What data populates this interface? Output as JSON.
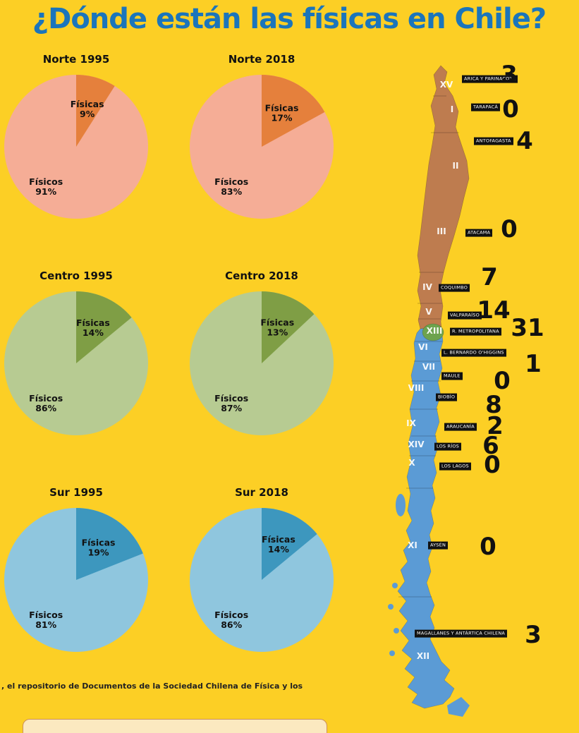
{
  "title": "¿Dónde están las físicas en Chile?",
  "footer_text": ", el repositorio de Documentos de la Sociedad Chilena de Física y los",
  "colors": {
    "background": "#FCCF25",
    "title": "#1B75BB",
    "norte_slice": "#E5803C",
    "norte_base": "#F5AD96",
    "centro_slice": "#7F9E45",
    "centro_base": "#B7CB92",
    "sur_slice": "#3D97BE",
    "sur_base": "#8FC6DE",
    "map_north": "#BE7C4F",
    "map_metro": "#6DA34D",
    "map_south": "#5B9BD5",
    "region_tag_bg": "#111111",
    "region_tag_text": "#FFFFFF",
    "count_text": "#111111"
  },
  "chart_data": [
    {
      "type": "pie",
      "title": "Norte 1995",
      "palette": "norte",
      "slices": [
        {
          "label": "Físicas",
          "pct": 9
        },
        {
          "label": "Físicos",
          "pct": 91
        }
      ]
    },
    {
      "type": "pie",
      "title": "Norte 2018",
      "palette": "norte",
      "slices": [
        {
          "label": "Físicas",
          "pct": 17
        },
        {
          "label": "Físicos",
          "pct": 83
        }
      ]
    },
    {
      "type": "pie",
      "title": "Centro 1995",
      "palette": "centro",
      "slices": [
        {
          "label": "Físicas",
          "pct": 14
        },
        {
          "label": "Físicos",
          "pct": 86
        }
      ]
    },
    {
      "type": "pie",
      "title": "Centro 2018",
      "palette": "centro",
      "slices": [
        {
          "label": "Físicas",
          "pct": 13
        },
        {
          "label": "Físicos",
          "pct": 87
        }
      ]
    },
    {
      "type": "pie",
      "title": "Sur 1995",
      "palette": "sur",
      "slices": [
        {
          "label": "Físicas",
          "pct": 19
        },
        {
          "label": "Físicos",
          "pct": 81
        }
      ]
    },
    {
      "type": "pie",
      "title": "Sur 2018",
      "palette": "sur",
      "slices": [
        {
          "label": "Físicas",
          "pct": 14
        },
        {
          "label": "Físicos",
          "pct": 86
        }
      ]
    }
  ],
  "map": {
    "regions": [
      {
        "numeral": "XV",
        "name": "ARICA Y PARINACOTA",
        "count": "3",
        "tag": [
          125,
          24
        ],
        "num": [
          103,
          32
        ],
        "cnt": [
          192,
          18
        ]
      },
      {
        "numeral": "I",
        "name": "TARAPACÁ",
        "count": "0",
        "tag": [
          138,
          64
        ],
        "num": [
          111,
          67
        ],
        "cnt": [
          194,
          67
        ]
      },
      {
        "numeral": "II",
        "name": "ANTOFAGASTA",
        "count": "4",
        "tag": [
          142,
          112
        ],
        "num": [
          116,
          147
        ],
        "cnt": [
          214,
          112
        ]
      },
      {
        "numeral": "III",
        "name": "ATACAMA",
        "count": "0",
        "tag": [
          130,
          242
        ],
        "num": [
          96,
          240
        ],
        "cnt": [
          192,
          237
        ]
      },
      {
        "numeral": "IV",
        "name": "COQUIMBO",
        "count": "7",
        "tag": [
          92,
          320
        ],
        "num": [
          76,
          319
        ],
        "cnt": [
          164,
          305
        ]
      },
      {
        "numeral": "V",
        "name": "VALPARAÍSO",
        "count": "14",
        "tag": [
          105,
          359
        ],
        "num": [
          78,
          354
        ],
        "cnt": [
          170,
          352
        ]
      },
      {
        "numeral": "XIII",
        "name": "R. METROPOLITANA",
        "count": "31",
        "tag": [
          108,
          382
        ],
        "num": [
          86,
          381
        ],
        "cnt": [
          218,
          377
        ]
      },
      {
        "numeral": "VI",
        "name": "L. BERNARDO O'HIGGINS",
        "count": "1",
        "tag": [
          96,
          412
        ],
        "num": [
          70,
          404
        ],
        "cnt": [
          226,
          428
        ]
      },
      {
        "numeral": "VII",
        "name": "MAULE",
        "count": "0",
        "tag": [
          96,
          445
        ],
        "num": [
          78,
          432
        ],
        "cnt": [
          182,
          452
        ]
      },
      {
        "numeral": "VIII",
        "name": "BIOBÍO",
        "count": "8",
        "tag": [
          88,
          475
        ],
        "num": [
          60,
          462
        ],
        "cnt": [
          170,
          486
        ]
      },
      {
        "numeral": "IX",
        "name": "ARAUCANÍA",
        "count": "2",
        "tag": [
          100,
          517
        ],
        "num": [
          53,
          512
        ],
        "cnt": [
          172,
          516
        ]
      },
      {
        "numeral": "XIV",
        "name": "LOS RÍOS",
        "count": "6",
        "tag": [
          86,
          545
        ],
        "num": [
          60,
          542
        ],
        "cnt": [
          166,
          544
        ]
      },
      {
        "numeral": "X",
        "name": "LOS LAGOS",
        "count": "0",
        "tag": [
          93,
          573
        ],
        "num": [
          54,
          568
        ],
        "cnt": [
          168,
          571
        ]
      },
      {
        "numeral": "XI",
        "name": "AYSÉN",
        "count": "0",
        "tag": [
          77,
          685
        ],
        "num": [
          55,
          685
        ],
        "cnt": [
          162,
          687
        ]
      },
      {
        "numeral": "XII",
        "name": "MAGALLANES Y ANTÁRTICA CHILENA",
        "count": "3",
        "tag": [
          58,
          810
        ],
        "num": [
          70,
          842
        ],
        "cnt": [
          226,
          812
        ]
      }
    ]
  }
}
